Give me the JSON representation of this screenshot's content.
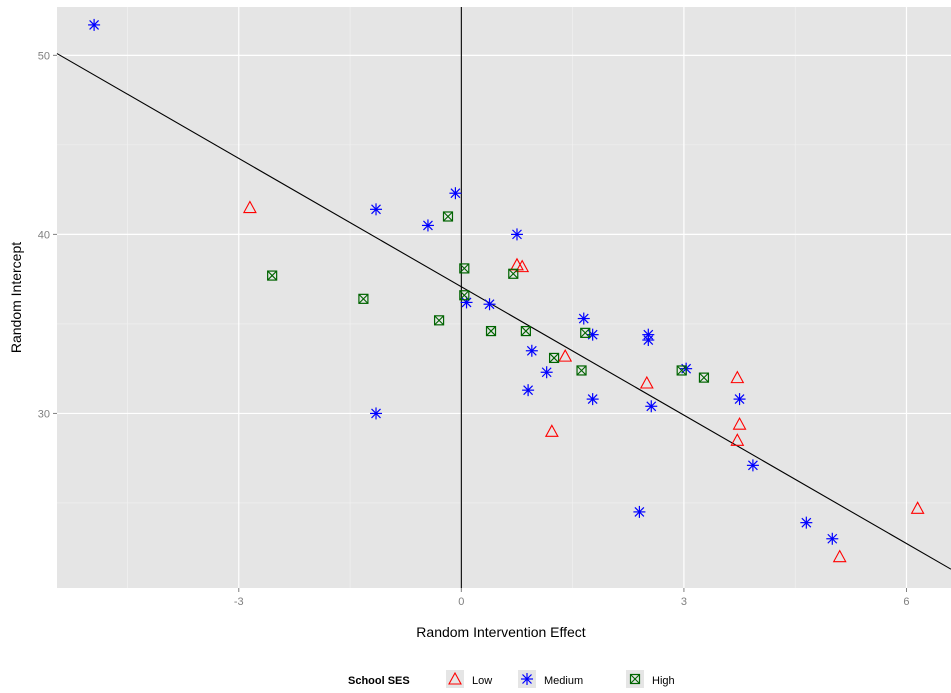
{
  "chart_data": {
    "type": "scatter",
    "title": "",
    "xlabel": "Random Intervention Effect",
    "ylabel": "Random Intercept",
    "xlim": [
      -5.45,
      6.6
    ],
    "ylim": [
      20.25,
      52.7
    ],
    "x_ticks": [
      -3,
      0,
      3,
      6
    ],
    "y_ticks": [
      30,
      40,
      50
    ],
    "x_tick_labels": [
      "-3",
      "0",
      "3",
      "6"
    ],
    "y_tick_labels": [
      "30",
      "40",
      "50"
    ],
    "grid": true,
    "background": "#e5e5e5",
    "legend": {
      "title": "School SES",
      "position": "bottom"
    },
    "vline_x": 0,
    "regression_line": {
      "x": [
        -5.45,
        6.6
      ],
      "y": [
        50.1,
        21.3
      ]
    },
    "series": [
      {
        "name": "Low",
        "marker": "triangle",
        "color": "#ff0000",
        "x": [
          -2.85,
          0.75,
          0.82,
          1.4,
          1.22,
          2.5,
          3.72,
          3.75,
          3.72,
          6.15,
          5.1
        ],
        "y": [
          41.5,
          38.3,
          38.2,
          33.2,
          29.0,
          31.7,
          32.0,
          29.4,
          28.5,
          24.7,
          22.0
        ]
      },
      {
        "name": "Medium",
        "marker": "asterisk",
        "color": "#0000ff",
        "x": [
          -4.95,
          -1.15,
          -0.45,
          -0.08,
          0.75,
          0.07,
          0.38,
          1.65,
          1.77,
          0.95,
          1.15,
          0.9,
          1.77,
          2.52,
          2.52,
          3.03,
          2.56,
          3.75,
          3.93,
          2.4,
          4.65,
          5.0,
          -1.15
        ],
        "y": [
          51.7,
          41.4,
          40.5,
          42.3,
          40.0,
          36.2,
          36.1,
          35.3,
          34.4,
          33.5,
          32.3,
          31.3,
          30.8,
          34.4,
          34.1,
          32.5,
          30.4,
          30.8,
          27.1,
          24.5,
          23.9,
          23.0,
          30.0
        ]
      },
      {
        "name": "High",
        "marker": "boxed-x",
        "color": "#006400",
        "x": [
          -2.55,
          -1.32,
          -0.3,
          -0.18,
          0.04,
          0.04,
          0.4,
          0.7,
          0.87,
          1.25,
          1.67,
          1.62,
          2.97,
          3.27
        ],
        "y": [
          37.7,
          36.4,
          35.2,
          41.0,
          38.1,
          36.6,
          34.6,
          37.8,
          34.6,
          33.1,
          34.5,
          32.4,
          32.4,
          32.0
        ]
      }
    ]
  }
}
